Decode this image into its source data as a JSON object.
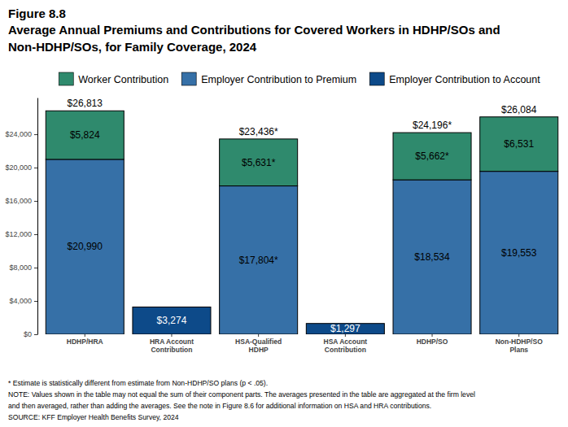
{
  "chart_data": {
    "type": "bar",
    "stacked": true,
    "figure_label": "Figure 8.8",
    "title": "Average Annual Premiums and Contributions for Covered Workers in HDHP/SOs and Non-HDHP/SOs, for Family Coverage, 2024",
    "categories": [
      "HDHP/HRA",
      "HRA Account\nContribution",
      "HSA-Qualified\nHDHP",
      "HSA Account\nContribution",
      "HDHP/SO",
      "Non-HDHP/SO\nPlans"
    ],
    "series": [
      {
        "name": "Worker Contribution",
        "color": "#2f8a6d",
        "values": [
          5824,
          null,
          5631,
          null,
          5662,
          6531
        ],
        "value_labels": [
          "$5,824",
          null,
          "$5,631*",
          null,
          "$5,662*",
          "$6,531"
        ]
      },
      {
        "name": "Employer Contribution to Premium",
        "color": "#3670a7",
        "values": [
          20990,
          null,
          17804,
          null,
          18534,
          19553
        ],
        "value_labels": [
          "$20,990",
          null,
          "$17,804*",
          null,
          "$18,534",
          "$19,553"
        ]
      },
      {
        "name": "Employer Contribution to Account",
        "color": "#0d4a89",
        "values": [
          null,
          3274,
          null,
          1297,
          null,
          null
        ],
        "value_labels": [
          null,
          "$3,274",
          null,
          "$1,297",
          null,
          null
        ]
      }
    ],
    "totals": [
      26813,
      null,
      23436,
      null,
      24196,
      26084
    ],
    "total_labels": [
      "$26,813",
      null,
      "$23,436*",
      null,
      "$24,196*",
      "$26,084"
    ],
    "ylim": [
      0,
      28400
    ],
    "yticks": [
      {
        "value": 0,
        "label": "$0"
      },
      {
        "value": 4000,
        "label": "$4,000"
      },
      {
        "value": 8000,
        "label": "$8,000"
      },
      {
        "value": 12000,
        "label": "$12,000"
      },
      {
        "value": 16000,
        "label": "$16,000"
      },
      {
        "value": 20000,
        "label": "$20,000"
      },
      {
        "value": 24000,
        "label": "$24,000"
      }
    ],
    "grid": false,
    "legend": "top",
    "data_labels": true,
    "notes": [
      "* Estimate is statistically different from estimate from Non-HDHP/SO plans (p < .05).",
      "NOTE: Values shown in the table may not equal the sum of their component parts. The averages presented in the table are aggregated at the firm level",
      "and then averaged, rather than adding the averages. See the note in Figure 8.6 for additional information on HSA and HRA contributions.",
      "SOURCE: KFF Employer Health Benefits Survey, 2024"
    ]
  }
}
